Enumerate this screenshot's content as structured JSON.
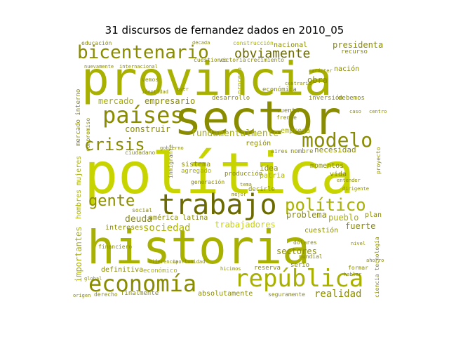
{
  "title": "31 discursos de fernandez dados en 2010_05",
  "palette": {
    "light": "#c8d400",
    "mid": "#a8b000",
    "olive": "#8a8c00",
    "dark": "#6b6a00"
  },
  "words": [
    {
      "text": "provincia",
      "color": "#a8b000"
    },
    {
      "text": "sector",
      "color": "#8a8c00"
    },
    {
      "text": "política",
      "color": "#c8d400"
    },
    {
      "text": "historia",
      "color": "#a8b000"
    },
    {
      "text": "trabajo",
      "color": "#6b6a00"
    },
    {
      "text": "economía",
      "color": "#8a8c00"
    },
    {
      "text": "república",
      "color": "#a8b000"
    },
    {
      "text": "países",
      "color": "#8a8c00"
    },
    {
      "text": "bicentenario",
      "color": "#8a8c00"
    },
    {
      "text": "obviamente",
      "color": "#6b6a00"
    },
    {
      "text": "modelo",
      "color": "#8a8c00"
    },
    {
      "text": "crisis",
      "color": "#8a8c00"
    },
    {
      "text": "político",
      "color": "#a8b000"
    },
    {
      "text": "gente",
      "color": "#8a8c00"
    },
    {
      "text": "fundamentalmente",
      "color": "#a8b000"
    },
    {
      "text": "mercado",
      "color": "#a8b000"
    },
    {
      "text": "empresario",
      "color": "#8a8c00"
    },
    {
      "text": "construir",
      "color": "#8a8c00"
    },
    {
      "text": "sociedad",
      "color": "#a8b000"
    },
    {
      "text": "trabajadores",
      "color": "#c8d400"
    },
    {
      "text": "deuda",
      "color": "#8a8c00"
    },
    {
      "text": "realidad",
      "color": "#8a8c00"
    },
    {
      "text": "presidenta",
      "color": "#8a8c00"
    },
    {
      "text": "nacional",
      "color": "#8a8c00"
    },
    {
      "text": "obra",
      "color": "#8a8c00"
    },
    {
      "text": "problema",
      "color": "#8a8c00"
    },
    {
      "text": "pueblo",
      "color": "#a8b000"
    },
    {
      "text": "fuerte",
      "color": "#8a8c00"
    },
    {
      "text": "necesidad",
      "color": "#8a8c00"
    },
    {
      "text": "idea",
      "color": "#8a8c00"
    },
    {
      "text": "patria",
      "color": "#a8b000"
    },
    {
      "text": "vida",
      "color": "#8a8c00"
    },
    {
      "text": "sectores",
      "color": "#8a8c00"
    },
    {
      "text": "intereses",
      "color": "#8a8c00"
    },
    {
      "text": "definitiva",
      "color": "#8a8c00"
    },
    {
      "text": "región",
      "color": "#8a8c00"
    },
    {
      "text": "momentos",
      "color": "#8a8c00"
    },
    {
      "text": "américa latina",
      "color": "#8a8c00"
    },
    {
      "text": "importantes",
      "color": "#a8b000"
    },
    {
      "text": "hombres mujeres",
      "color": "#a8b000"
    },
    {
      "text": "mercado interno",
      "color": "#8a8c00"
    },
    {
      "text": "desarrollo",
      "color": "#8a8c00"
    },
    {
      "text": "económica",
      "color": "#8a8c00"
    },
    {
      "text": "cuestión",
      "color": "#8a8c00"
    },
    {
      "text": "absolutamente",
      "color": "#8a8c00"
    },
    {
      "text": "finalmente",
      "color": "#8a8c00"
    },
    {
      "text": "reserva",
      "color": "#8a8c00"
    },
    {
      "text": "nación",
      "color": "#8a8c00"
    },
    {
      "text": "recurso",
      "color": "#8a8c00"
    },
    {
      "text": "cuestiones",
      "color": "#8a8c00"
    },
    {
      "text": "victoria",
      "color": "#8a8c00"
    },
    {
      "text": "crecimiento",
      "color": "#8a8c00"
    },
    {
      "text": "inversión",
      "color": "#8a8c00"
    },
    {
      "text": "debemos",
      "color": "#8a8c00"
    },
    {
      "text": "sistema",
      "color": "#8a8c00"
    },
    {
      "text": "agregado",
      "color": "#a8b000"
    },
    {
      "text": "producción",
      "color": "#8a8c00"
    },
    {
      "text": "empresa",
      "color": "#a8b000"
    },
    {
      "text": "nombre",
      "color": "#8a8c00"
    },
    {
      "text": "decirle",
      "color": "#8a8c00"
    },
    {
      "text": "ciencia tecnología",
      "color": "#8a8c00"
    },
    {
      "text": "proyecto",
      "color": "#8a8c00"
    },
    {
      "text": "educación",
      "color": "#8a8c00"
    },
    {
      "text": "construcción",
      "color": "#a8b000"
    },
    {
      "text": "proceso",
      "color": "#a8b000"
    },
    {
      "text": "compromiso",
      "color": "#8a8c00"
    },
    {
      "text": "económico",
      "color": "#a8b000"
    },
    {
      "text": "cuenta",
      "color": "#8a8c00"
    },
    {
      "text": "frente",
      "color": "#8a8c00"
    },
    {
      "text": "ciudadano",
      "color": "#8a8c00"
    },
    {
      "text": "inmigrante",
      "color": "#8a8c00"
    },
    {
      "text": "generación",
      "color": "#8a8c00"
    },
    {
      "text": "seguramente",
      "color": "#8a8c00"
    },
    {
      "text": "derecho",
      "color": "#8a8c00"
    },
    {
      "text": "formar",
      "color": "#8a8c00"
    },
    {
      "text": "plan",
      "color": "#8a8c00"
    },
    {
      "text": "serio",
      "color": "#8a8c00"
    },
    {
      "text": "mundial",
      "color": "#8a8c00"
    },
    {
      "text": "dólares",
      "color": "#8a8c00"
    },
    {
      "text": "social",
      "color": "#8a8c00"
    },
    {
      "text": "financiero",
      "color": "#8a8c00"
    },
    {
      "text": "vemos",
      "color": "#8a8c00"
    },
    {
      "text": "identidad",
      "color": "#8a8c00"
    },
    {
      "text": "ayer",
      "color": "#8a8c00"
    },
    {
      "text": "tema",
      "color": "#8a8c00"
    },
    {
      "text": "aires",
      "color": "#8a8c00"
    },
    {
      "text": "caso",
      "color": "#8a8c00"
    },
    {
      "text": "centro",
      "color": "#8a8c00"
    },
    {
      "text": "carácter",
      "color": "#8a8c00"
    },
    {
      "text": "contrario",
      "color": "#8a8c00"
    },
    {
      "text": "internacional",
      "color": "#8a8c00"
    },
    {
      "text": "nuevamente",
      "color": "#8a8c00"
    },
    {
      "text": "década",
      "color": "#8a8c00"
    },
    {
      "text": "global",
      "color": "#8a8c00"
    },
    {
      "text": "gobierno",
      "color": "#8a8c00"
    },
    {
      "text": "entender",
      "color": "#8a8c00"
    },
    {
      "text": "dirigente",
      "color": "#8a8c00"
    },
    {
      "text": "oportunidad",
      "color": "#8a8c00"
    },
    {
      "text": "diferencia",
      "color": "#8a8c00"
    },
    {
      "text": "nivel",
      "color": "#8a8c00"
    },
    {
      "text": "mejor",
      "color": "#8a8c00"
    },
    {
      "text": "origen",
      "color": "#8a8c00"
    },
    {
      "text": "hicimos",
      "color": "#8a8c00"
    },
    {
      "text": "hablar",
      "color": "#8a8c00"
    },
    {
      "text": "ahorro",
      "color": "#8a8c00"
    }
  ]
}
